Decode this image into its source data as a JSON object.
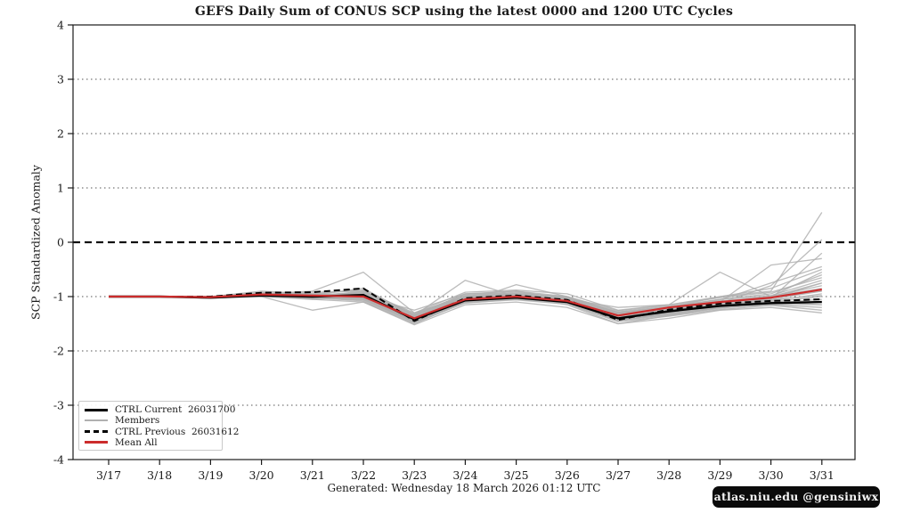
{
  "title": "GEFS Daily Sum of CONUS SCP using the latest 0000 and 1200 UTC Cycles",
  "footer": {
    "generated": "Generated: Wednesday 18 March  2026  01:12 UTC",
    "watermark": "atlas.niu.edu  @gensiniwx"
  },
  "colors": {
    "ctrl": "#000000",
    "members": "#b0b0b0",
    "mean": "#cc2c2c",
    "spine": "#1a1a1a",
    "grid": "#555555",
    "watermark_bg": "#0b0b0b"
  },
  "chart_data": {
    "type": "line",
    "title": "GEFS Daily Sum of CONUS SCP using the latest 0000 and 1200 UTC Cycles",
    "xlabel": "",
    "ylabel": "SCP Standardized Anomaly",
    "ylim": [
      -4,
      4
    ],
    "yticks": [
      4,
      3,
      2,
      1,
      0,
      -1,
      -2,
      -3,
      -4
    ],
    "grid_levels_dotted": [
      3,
      2,
      1,
      -1,
      -2,
      -3
    ],
    "zero_line": {
      "y": 0,
      "style": "dashed",
      "color": "#111111"
    },
    "x": [
      "3/17",
      "3/18",
      "3/19",
      "3/20",
      "3/21",
      "3/22",
      "3/23",
      "3/24",
      "3/25",
      "3/26",
      "3/27",
      "3/28",
      "3/29",
      "3/30",
      "3/31"
    ],
    "legend": {
      "position": "lower left",
      "entries": [
        {
          "label": "CTRL Current  26031700",
          "color": "#000000",
          "style": "solid",
          "weight": 3
        },
        {
          "label": "Members",
          "color": "#b0b0b0",
          "style": "solid",
          "weight": 2
        },
        {
          "label": "CTRL Previous  26031612",
          "color": "#000000",
          "style": "dashed",
          "weight": 3
        },
        {
          "label": "Mean All",
          "color": "#cc2c2c",
          "style": "solid",
          "weight": 3
        }
      ]
    },
    "series": [
      {
        "name": "CTRL Current 26031700",
        "color": "#000000",
        "style": "solid",
        "width": 2.4,
        "values": [
          -1.0,
          -1.0,
          -1.02,
          -0.98,
          -1.0,
          -0.97,
          -1.42,
          -1.07,
          -1.02,
          -1.1,
          -1.4,
          -1.27,
          -1.17,
          -1.12,
          -1.1
        ]
      },
      {
        "name": "CTRL Previous 26031612",
        "color": "#000000",
        "style": "dashed",
        "width": 2.0,
        "values": [
          -1.0,
          -1.0,
          -1.0,
          -0.93,
          -0.92,
          -0.85,
          -1.45,
          -1.03,
          -0.98,
          -1.06,
          -1.43,
          -1.24,
          -1.13,
          -1.08,
          -1.05
        ]
      },
      {
        "name": "Mean All",
        "color": "#cc2c2c",
        "style": "solid",
        "width": 2.2,
        "values": [
          -1.0,
          -1.0,
          -1.01,
          -0.96,
          -0.98,
          -1.0,
          -1.4,
          -1.05,
          -1.0,
          -1.08,
          -1.35,
          -1.2,
          -1.1,
          -1.02,
          -0.87
        ]
      }
    ],
    "members": {
      "name": "Members",
      "color": "#b0b0b0",
      "width": 1.3,
      "values": [
        [
          -1.0,
          -1.0,
          -1.02,
          -0.95,
          -0.9,
          -0.55,
          -1.3,
          -1.0,
          -0.95,
          -1.0,
          -1.3,
          -1.2,
          -1.05,
          -0.95,
          -0.6
        ],
        [
          -1.0,
          -1.0,
          -1.0,
          -0.92,
          -1.0,
          -0.9,
          -1.35,
          -0.7,
          -1.0,
          -1.05,
          -1.35,
          -1.25,
          -1.1,
          -1.0,
          -0.8
        ],
        [
          -1.0,
          -1.0,
          -1.03,
          -1.0,
          -1.25,
          -1.1,
          -1.5,
          -1.1,
          -0.78,
          -1.0,
          -1.4,
          -1.3,
          -1.15,
          -1.05,
          -0.9
        ],
        [
          -1.0,
          -1.0,
          -1.0,
          -0.9,
          -0.95,
          -1.05,
          -1.45,
          -1.05,
          -1.0,
          -1.15,
          -1.5,
          -1.35,
          -1.2,
          -1.1,
          -1.15
        ],
        [
          -1.0,
          -1.0,
          -1.02,
          -0.97,
          -1.05,
          -1.0,
          -1.25,
          -0.95,
          -0.9,
          -1.05,
          -1.2,
          -1.15,
          -0.55,
          -1.0,
          -0.75
        ],
        [
          -1.0,
          -1.0,
          -1.0,
          -0.95,
          -1.0,
          -0.95,
          -1.4,
          -1.0,
          -1.05,
          -1.1,
          -1.35,
          -1.3,
          -1.1,
          -0.42,
          -0.3
        ],
        [
          -1.0,
          -1.0,
          -1.01,
          -0.93,
          -0.97,
          -0.85,
          -1.35,
          -0.95,
          -0.95,
          -1.0,
          -1.3,
          -1.2,
          -1.0,
          -0.9,
          0.55
        ],
        [
          -1.0,
          -1.0,
          -1.02,
          -0.96,
          -1.02,
          -1.08,
          -1.48,
          -1.12,
          -1.05,
          -1.12,
          -1.45,
          -1.3,
          -1.2,
          -1.15,
          -1.2
        ],
        [
          -1.0,
          -1.0,
          -1.0,
          -0.98,
          -1.0,
          -1.0,
          -1.38,
          -1.02,
          -0.98,
          -1.05,
          -1.32,
          -1.22,
          -1.12,
          -0.8,
          0.05
        ],
        [
          -1.0,
          -1.0,
          -1.02,
          -0.94,
          -0.92,
          -0.9,
          -1.3,
          -0.92,
          -0.88,
          -0.95,
          -1.25,
          -1.15,
          -1.0,
          -0.85,
          -0.5
        ],
        [
          -1.0,
          -1.0,
          -1.0,
          -1.0,
          -1.05,
          -1.1,
          -1.52,
          -1.15,
          -1.1,
          -1.2,
          -1.5,
          -1.4,
          -1.25,
          -1.2,
          -1.3
        ],
        [
          -1.0,
          -1.0,
          -1.03,
          -0.97,
          -1.0,
          -0.98,
          -1.42,
          -1.05,
          -1.02,
          -1.08,
          -1.38,
          -1.28,
          -1.15,
          -1.08,
          -0.95
        ],
        [
          -1.0,
          -1.0,
          -1.0,
          -0.95,
          -0.98,
          -0.92,
          -1.33,
          -0.98,
          -0.92,
          -1.02,
          -1.28,
          -1.18,
          -1.05,
          -0.98,
          -0.7
        ],
        [
          -1.0,
          -1.0,
          -1.02,
          -0.96,
          -1.03,
          -1.02,
          -1.44,
          -1.08,
          -1.0,
          -1.1,
          -1.42,
          -1.32,
          -1.18,
          -1.1,
          -1.0
        ],
        [
          -1.0,
          -1.0,
          -1.0,
          -0.94,
          -0.96,
          -0.95,
          -1.36,
          -1.0,
          -0.96,
          -1.03,
          -1.3,
          -1.2,
          -1.08,
          -1.0,
          -0.85
        ],
        [
          -1.0,
          -1.0,
          -1.01,
          -0.98,
          -1.02,
          -1.05,
          -1.46,
          -1.1,
          -1.04,
          -1.12,
          -1.44,
          -1.34,
          -1.22,
          -1.12,
          -1.05
        ],
        [
          -1.0,
          -1.0,
          -1.02,
          -0.95,
          -0.99,
          -0.96,
          -1.39,
          -1.03,
          -0.99,
          -1.06,
          -1.34,
          -1.24,
          -1.1,
          -1.02,
          -0.9
        ],
        [
          -1.0,
          -1.0,
          -1.0,
          -0.96,
          -1.01,
          -1.0,
          -1.41,
          -1.05,
          -1.0,
          -1.08,
          -1.36,
          -1.26,
          -1.14,
          -1.06,
          -0.98
        ],
        [
          -1.0,
          -1.0,
          -1.03,
          -0.99,
          -1.04,
          -1.03,
          -1.43,
          -1.07,
          -1.03,
          -1.1,
          -1.4,
          -1.3,
          -1.16,
          -1.1,
          -1.1
        ],
        [
          -1.0,
          -1.0,
          -1.0,
          -0.93,
          -0.95,
          -0.88,
          -1.32,
          -0.96,
          -0.9,
          -1.0,
          -1.26,
          -1.16,
          -1.02,
          -0.92,
          -0.65
        ],
        [
          -1.0,
          -1.0,
          -1.01,
          -0.97,
          -1.0,
          -0.99,
          -1.4,
          -1.04,
          -1.0,
          -1.07,
          -1.35,
          -1.25,
          -1.12,
          -1.04,
          -0.2
        ],
        [
          -1.0,
          -1.0,
          -1.02,
          -0.98,
          -1.03,
          -1.06,
          -1.47,
          -1.11,
          -1.06,
          -1.14,
          -1.46,
          -1.36,
          -1.24,
          -1.16,
          -1.25
        ],
        [
          -1.0,
          -1.0,
          -1.0,
          -0.95,
          -0.97,
          -0.93,
          -1.34,
          -0.99,
          -0.94,
          -1.01,
          -1.29,
          -1.19,
          -1.06,
          -0.75,
          -0.45
        ],
        [
          -1.0,
          -1.0,
          -1.01,
          -0.96,
          -1.0,
          -1.01,
          -1.37,
          -1.02,
          -0.97,
          -1.04,
          -1.31,
          -1.21,
          -1.09,
          -1.0,
          -0.55
        ],
        [
          -1.0,
          -1.0,
          -1.02,
          -0.94,
          -0.98,
          -0.97,
          -1.36,
          -1.0,
          -0.96,
          -1.05,
          -1.33,
          -1.23,
          -1.11,
          -1.03,
          -0.75
        ],
        [
          -1.0,
          -1.0,
          -1.0,
          -0.97,
          -1.02,
          -1.04,
          -1.45,
          -1.09,
          -1.02,
          -1.09,
          -1.43,
          -1.33,
          -1.2,
          -1.14,
          -1.15
        ]
      ]
    }
  }
}
